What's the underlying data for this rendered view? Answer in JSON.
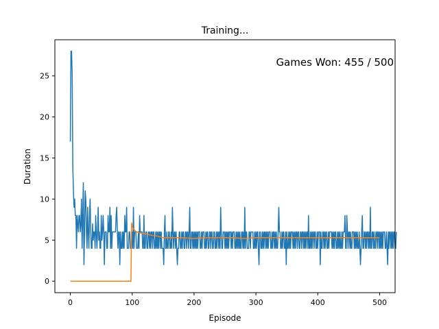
{
  "chart_data": {
    "type": "line",
    "title": "Training...",
    "xlabel": "Episode",
    "ylabel": "Duration",
    "annotation": "Games Won: 455 / 500",
    "xlim": [
      -25,
      525
    ],
    "ylim": [
      -1.4,
      29.4
    ],
    "xticks": [
      0,
      100,
      200,
      300,
      400,
      500
    ],
    "yticks": [
      0,
      5,
      10,
      15,
      20,
      25
    ],
    "grid": false,
    "series": [
      {
        "name": "",
        "color": "#1f77b4",
        "x_start": 0,
        "values": [
          17,
          28,
          28,
          25,
          14,
          11,
          9,
          10,
          8,
          8,
          4,
          8,
          7,
          6,
          8,
          8,
          6,
          7,
          10,
          4,
          8,
          12,
          2,
          6,
          11,
          10,
          6,
          4,
          9,
          6,
          4,
          8,
          10,
          6,
          4,
          4,
          7,
          5,
          6,
          6,
          4,
          8,
          6,
          4,
          6,
          9,
          5,
          6,
          4,
          4,
          8,
          5,
          6,
          8,
          6,
          2,
          6,
          6,
          6,
          4,
          4,
          8,
          6,
          6,
          9,
          4,
          8,
          4,
          6,
          6,
          6,
          6,
          6,
          6,
          8,
          9,
          6,
          4,
          6,
          6,
          2,
          6,
          4,
          4,
          6,
          4,
          6,
          4,
          8,
          6,
          6,
          9,
          4,
          4,
          4,
          6,
          6,
          4,
          4,
          4,
          6,
          4,
          9,
          4,
          6,
          6,
          6,
          4,
          4,
          4,
          6,
          4,
          8,
          6,
          6,
          6,
          6,
          4,
          4,
          8,
          4,
          4,
          6,
          6,
          4,
          4,
          6,
          6,
          4,
          6,
          4,
          6,
          6,
          4,
          6,
          6,
          4,
          4,
          6,
          4,
          6,
          4,
          6,
          4,
          6,
          6,
          4,
          6,
          4,
          4,
          4,
          2,
          6,
          8,
          4,
          4,
          6,
          4,
          4,
          6,
          6,
          4,
          4,
          6,
          4,
          9,
          6,
          4,
          6,
          6,
          4,
          6,
          4,
          2,
          4,
          4,
          6,
          6,
          4,
          4,
          6,
          4,
          6,
          6,
          4,
          4,
          6,
          6,
          4,
          6,
          6,
          4,
          6,
          9,
          4,
          4,
          6,
          6,
          4,
          6,
          4,
          6,
          4,
          6,
          4,
          6,
          4,
          6,
          6,
          6,
          4,
          4,
          6,
          4,
          6,
          6,
          6,
          4,
          4,
          6,
          4,
          6,
          6,
          4,
          4,
          6,
          6,
          4,
          6,
          6,
          4,
          4,
          6,
          6,
          4,
          4,
          6,
          4,
          6,
          6,
          4,
          6,
          4,
          9,
          6,
          4,
          4,
          6,
          6,
          6,
          4,
          6,
          4,
          6,
          4,
          6,
          4,
          6,
          6,
          6,
          4,
          6,
          4,
          6,
          6,
          6,
          4,
          4,
          6,
          4,
          6,
          4,
          6,
          4,
          6,
          4,
          4,
          6,
          6,
          4,
          6,
          4,
          9,
          4,
          6,
          6,
          4,
          4,
          4,
          6,
          6,
          4,
          6,
          6,
          6,
          6,
          4,
          4,
          6,
          4,
          6,
          4,
          6,
          6,
          4,
          2,
          6,
          6,
          4,
          4,
          6,
          4,
          6,
          4,
          6,
          6,
          4,
          6,
          4,
          6,
          4,
          6,
          6,
          6,
          4,
          4,
          6,
          4,
          6,
          6,
          4,
          6,
          4,
          6,
          4,
          4,
          6,
          9,
          6,
          6,
          4,
          4,
          6,
          4,
          6,
          6,
          4,
          4,
          6,
          2,
          6,
          4,
          4,
          6,
          4,
          6,
          4,
          6,
          6,
          6,
          4,
          6,
          4,
          6,
          4,
          6,
          6,
          4,
          6,
          6,
          4,
          4,
          6,
          6,
          4,
          6,
          6,
          4,
          6,
          4,
          6,
          4,
          6,
          6,
          4,
          8,
          4,
          4,
          6,
          4,
          6,
          4,
          6,
          6,
          4,
          6,
          6,
          4,
          4,
          6,
          4,
          6,
          6,
          6,
          2,
          6,
          4,
          4,
          6,
          6,
          4,
          6,
          4,
          6,
          6,
          4,
          4,
          6,
          4,
          6,
          6,
          6,
          6,
          4,
          6,
          4,
          6,
          4,
          6,
          6,
          4,
          4,
          6,
          4,
          6,
          4,
          6,
          4,
          4,
          6,
          4,
          6,
          6,
          6,
          8,
          4,
          4,
          8,
          6,
          4,
          6,
          6,
          4,
          6,
          4,
          4,
          6,
          6,
          6,
          4,
          6,
          4,
          6,
          4,
          6,
          4,
          4,
          6,
          4,
          2,
          4,
          6,
          8,
          4,
          4,
          6,
          6,
          4,
          6,
          4,
          6,
          6,
          4,
          6,
          4,
          9,
          4,
          4,
          6,
          6,
          4,
          6,
          4,
          4,
          6,
          6,
          4,
          6,
          6,
          4,
          6,
          4,
          6,
          4,
          6,
          4,
          6,
          6,
          6,
          4,
          4,
          6,
          4,
          2,
          6,
          4,
          6,
          6,
          4,
          6,
          4,
          6,
          4,
          6,
          6,
          4,
          4,
          6
        ]
      },
      {
        "name": "",
        "color": "#ff7f0e",
        "points": [
          [
            0,
            0
          ],
          [
            98,
            0
          ],
          [
            99,
            7.1
          ],
          [
            100,
            6.6
          ],
          [
            105,
            6.1
          ],
          [
            110,
            5.9
          ],
          [
            120,
            5.8
          ],
          [
            130,
            5.6
          ],
          [
            140,
            5.5
          ],
          [
            150,
            5.3
          ],
          [
            160,
            5.3
          ],
          [
            180,
            5.3
          ],
          [
            200,
            5.2
          ],
          [
            220,
            5.3
          ],
          [
            240,
            5.3
          ],
          [
            260,
            5.3
          ],
          [
            280,
            5.2
          ],
          [
            300,
            5.3
          ],
          [
            320,
            5.3
          ],
          [
            340,
            5.3
          ],
          [
            360,
            5.3
          ],
          [
            380,
            5.3
          ],
          [
            400,
            5.3
          ],
          [
            420,
            5.3
          ],
          [
            440,
            5.3
          ],
          [
            460,
            5.3
          ],
          [
            480,
            5.3
          ],
          [
            500,
            5.3
          ]
        ]
      }
    ]
  }
}
